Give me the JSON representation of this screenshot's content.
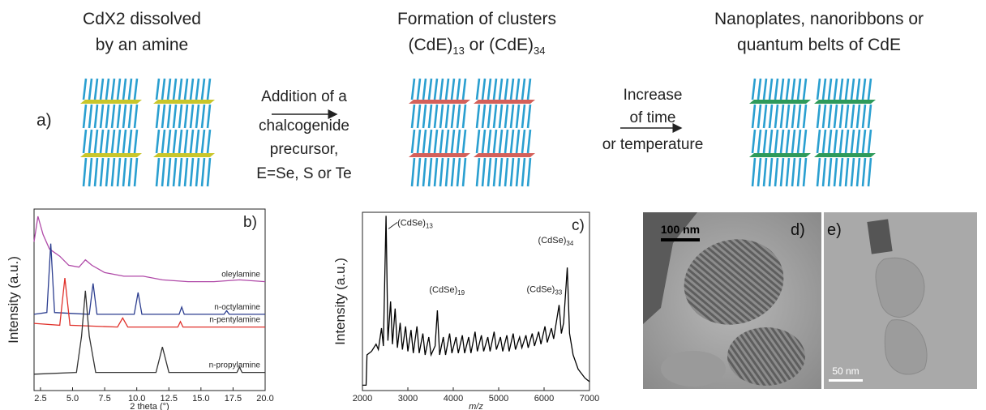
{
  "panel_a": {
    "label": "a)",
    "steps": [
      {
        "title": [
          [
            {
              "text": "CdX2 dissolved"
            }
          ],
          [
            {
              "text": "by an amine"
            }
          ]
        ]
      },
      {
        "title": [
          [
            {
              "text": "Formation of clusters"
            }
          ],
          [
            {
              "text": "(CdE)",
              "sub": "13"
            },
            {
              "text": " or "
            },
            {
              "text": "(CdE)",
              "sub": "34"
            }
          ]
        ]
      },
      {
        "title": [
          [
            {
              "text": "Nanoplates, nanoribbons or"
            }
          ],
          [
            {
              "text": "quantum belts of CdE"
            }
          ]
        ]
      }
    ],
    "arrows": [
      [
        "Addition of a",
        "chalcogenide",
        "precursor,",
        "E=Se, S or Te"
      ],
      [
        "Increase",
        "of time",
        "or temperature"
      ]
    ]
  },
  "chart_data": [
    {
      "type": "line",
      "panel_label": "b)",
      "xlabel": "2 theta (°)",
      "ylabel": "Intensity (a.u.)",
      "xlim": [
        2,
        20
      ],
      "ylim": [
        0,
        10
      ],
      "xticks": [
        2.5,
        {
          "value": 5,
          "label": "5.0"
        },
        7.5,
        {
          "value": 10,
          "label": "10.0"
        },
        12.5,
        {
          "value": 15,
          "label": "15.0"
        },
        17.5,
        {
          "value": 20,
          "label": "20.0"
        }
      ],
      "series": [
        {
          "name": "oleylamine",
          "color": "#b04aa8",
          "x": [
            2.0,
            2.3,
            2.7,
            3.2,
            4.0,
            4.7,
            5.5,
            6.0,
            6.5,
            7.5,
            9.0,
            10.5,
            12,
            14,
            16,
            18,
            20
          ],
          "values": [
            8.2,
            9.6,
            8.6,
            7.8,
            7.4,
            6.9,
            6.8,
            7.2,
            6.9,
            6.5,
            6.3,
            6.3,
            6.1,
            6.0,
            6.0,
            6.1,
            6.0
          ]
        },
        {
          "name": "n-octylamine",
          "color": "#2b3d8f",
          "x": [
            2,
            3.0,
            3.3,
            3.6,
            6.3,
            6.6,
            6.9,
            9.8,
            10.1,
            10.4,
            13.3,
            13.5,
            13.7,
            16.8,
            17,
            17.2,
            20
          ],
          "values": [
            4.2,
            4.3,
            8.1,
            4.3,
            4.2,
            5.9,
            4.2,
            4.2,
            5.4,
            4.2,
            4.2,
            4.6,
            4.2,
            4.2,
            4.4,
            4.2,
            4.2
          ]
        },
        {
          "name": "n-pentylamine",
          "color": "#e0302a",
          "x": [
            2,
            4.0,
            4.4,
            4.8,
            8.5,
            8.9,
            9.3,
            13.2,
            13.4,
            13.6,
            20
          ],
          "values": [
            3.7,
            3.6,
            6.2,
            3.6,
            3.5,
            4.0,
            3.5,
            3.5,
            3.8,
            3.5,
            3.5
          ]
        },
        {
          "name": "n-propylamine",
          "color": "#333333",
          "x": [
            2,
            5.3,
            5.7,
            6.0,
            6.3,
            6.8,
            11.5,
            12.0,
            12.5,
            17.8,
            18,
            18.2,
            20
          ],
          "values": [
            0.9,
            1.0,
            3.0,
            5.5,
            3.0,
            1.0,
            1.0,
            2.4,
            1.0,
            1.0,
            1.3,
            1.0,
            1.0
          ]
        }
      ]
    },
    {
      "type": "line",
      "panel_label": "c)",
      "xlabel": "m/z",
      "ylabel": "Intensity (a.u.)",
      "xlim": [
        2000,
        7000
      ],
      "ylim": [
        0,
        10
      ],
      "xticks": [
        2000,
        3000,
        4000,
        5000,
        6000,
        7000
      ],
      "series": [
        {
          "color": "#000000",
          "x": [
            2000,
            2080,
            2100,
            2200,
            2300,
            2350,
            2420,
            2460,
            2520,
            2560,
            2620,
            2660,
            2720,
            2770,
            2830,
            2880,
            2950,
            3000,
            3070,
            3120,
            3200,
            3250,
            3330,
            3380,
            3460,
            3510,
            3600,
            3650,
            3700,
            3780,
            3830,
            3920,
            3970,
            4060,
            4110,
            4200,
            4250,
            4340,
            4390,
            4480,
            4530,
            4620,
            4670,
            4760,
            4810,
            4900,
            4950,
            5040,
            5090,
            5180,
            5230,
            5320,
            5370,
            5460,
            5510,
            5600,
            5650,
            5740,
            5790,
            5880,
            5930,
            6020,
            6070,
            6160,
            6210,
            6330,
            6380,
            6430,
            6510,
            6560,
            6640,
            6750,
            6900,
            7000
          ],
          "values": [
            0.3,
            0.3,
            2.0,
            2.2,
            2.6,
            2.3,
            3.5,
            2.5,
            9.8,
            2.8,
            5.0,
            2.6,
            4.6,
            2.4,
            3.8,
            2.3,
            3.6,
            2.2,
            3.4,
            2.1,
            3.6,
            2.1,
            3.2,
            2.0,
            3.0,
            2.0,
            2.5,
            4.5,
            2.0,
            3.0,
            2.0,
            3.2,
            2.1,
            3.0,
            2.1,
            3.1,
            2.1,
            3.0,
            2.1,
            3.3,
            2.2,
            3.1,
            2.2,
            3.0,
            2.2,
            3.3,
            2.3,
            3.0,
            2.2,
            3.1,
            2.2,
            3.2,
            2.3,
            3.0,
            2.4,
            3.1,
            2.4,
            3.2,
            2.5,
            3.3,
            2.6,
            3.6,
            2.7,
            3.5,
            2.9,
            4.8,
            3.2,
            3.8,
            6.9,
            3.2,
            2.0,
            1.2,
            0.7,
            0.5
          ]
        }
      ],
      "annotations": [
        {
          "text": "(CdSe)",
          "sub": "13",
          "x": 2520,
          "y": 9.8
        },
        {
          "text": "(CdSe)",
          "sub": "19",
          "x": 3650,
          "y": 4.5
        },
        {
          "text": "(CdSe)",
          "sub": "33",
          "x": 6330,
          "y": 4.8
        },
        {
          "text": "(CdSe)",
          "sub": "34",
          "x": 6510,
          "y": 6.9
        }
      ]
    }
  ],
  "panel_d": {
    "label": "d)",
    "scale_bar": "100 nm"
  },
  "panel_e": {
    "label": "e)",
    "scale_bar": "50 nm"
  }
}
